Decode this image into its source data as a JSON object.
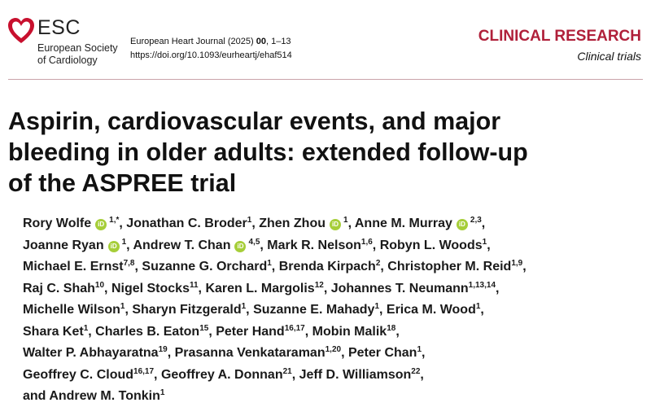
{
  "header": {
    "org_short": "ESC",
    "org_full": [
      "European Society",
      "of Cardiology"
    ],
    "journal": "European Heart Journal (2025)",
    "volume": "00",
    "pages": ", 1–13",
    "doi": "https://doi.org/10.1093/eurheartj/ehaf514",
    "section": "CLINICAL RESEARCH",
    "subsection": "Clinical trials"
  },
  "title": [
    "Aspirin, cardiovascular events, and major",
    "bleeding in older adults: extended follow-up",
    "of the ASPREE trial"
  ],
  "authors": {
    "separator": ",",
    "conjunction": "and",
    "lines": [
      [
        {
          "name": "Rory Wolfe",
          "orcid": true,
          "affil": "1,*"
        },
        {
          "name": "Jonathan C. Broder",
          "affil": "1"
        },
        {
          "name": "Zhen Zhou",
          "orcid": true,
          "affil": "1"
        },
        {
          "name": "Anne M. Murray",
          "orcid": true,
          "affil": "2,3"
        }
      ],
      [
        {
          "name": "Joanne Ryan",
          "orcid": true,
          "affil": "1"
        },
        {
          "name": "Andrew T. Chan",
          "orcid": true,
          "affil": "4,5"
        },
        {
          "name": "Mark R. Nelson",
          "affil": "1,6"
        },
        {
          "name": "Robyn L. Woods",
          "affil": "1"
        }
      ],
      [
        {
          "name": "Michael E. Ernst",
          "affil": "7,8"
        },
        {
          "name": "Suzanne G. Orchard",
          "affil": "1"
        },
        {
          "name": "Brenda Kirpach",
          "affil": "2"
        },
        {
          "name": "Christopher M. Reid",
          "affil": "1,9"
        }
      ],
      [
        {
          "name": "Raj C. Shah",
          "affil": "10"
        },
        {
          "name": "Nigel Stocks",
          "affil": "11"
        },
        {
          "name": "Karen L. Margolis",
          "affil": "12"
        },
        {
          "name": "Johannes T. Neumann",
          "affil": "1,13,14"
        }
      ],
      [
        {
          "name": "Michelle Wilson",
          "affil": "1"
        },
        {
          "name": "Sharyn Fitzgerald",
          "affil": "1"
        },
        {
          "name": "Suzanne E. Mahady",
          "affil": "1"
        },
        {
          "name": "Erica M. Wood",
          "affil": "1"
        }
      ],
      [
        {
          "name": "Shara Ket",
          "affil": "1"
        },
        {
          "name": "Charles B. Eaton",
          "affil": "15"
        },
        {
          "name": "Peter Hand",
          "affil": "16,17"
        },
        {
          "name": "Mobin Malik",
          "affil": "18"
        }
      ],
      [
        {
          "name": "Walter P. Abhayaratna",
          "affil": "19"
        },
        {
          "name": "Prasanna Venkataraman",
          "affil": "1,20"
        },
        {
          "name": "Peter Chan",
          "affil": "1"
        }
      ],
      [
        {
          "name": "Geoffrey C. Cloud",
          "affil": "16,17"
        },
        {
          "name": "Geoffrey A. Donnan",
          "affil": "21"
        },
        {
          "name": "Jeff D. Williamson",
          "affil": "22"
        }
      ],
      [
        {
          "name": "Andrew M. Tonkin",
          "affil": "1",
          "last": true
        }
      ]
    ]
  }
}
